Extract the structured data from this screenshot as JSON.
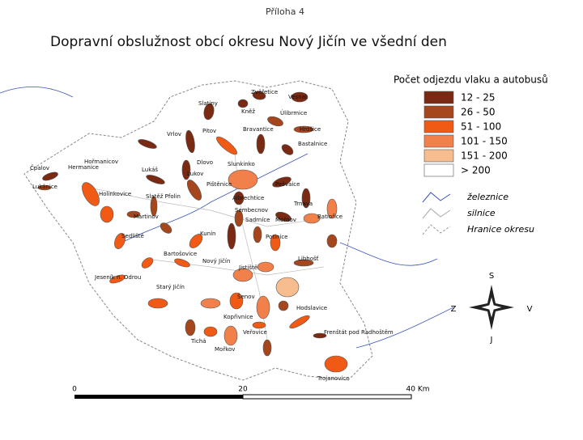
{
  "header": "Příloha 4",
  "title": "Dopravní obslužnost obcí okresu Nový Jičín ve všední den",
  "legend": {
    "title": "Počet odjezdu vlaku a autobusů",
    "classes": [
      {
        "label": "12 - 25",
        "color": "#7a2a12"
      },
      {
        "label": "26 - 50",
        "color": "#a5461c"
      },
      {
        "label": "51 - 100",
        "color": "#f05a14"
      },
      {
        "label": "101 - 150",
        "color": "#f2804a"
      },
      {
        "label": "151 - 200",
        "color": "#f7bd8e"
      },
      {
        "label": "> 200",
        "color": "#ffffff"
      }
    ],
    "lines": [
      "železnice",
      "silnice",
      "Hranice okresu"
    ]
  },
  "compass": {
    "north": "S",
    "west": "Z",
    "east": "V",
    "south": "J"
  },
  "scale_bar": {
    "labels": [
      "0",
      "20",
      "40 Km"
    ]
  },
  "places": [
    "Zvěřetice",
    "Vesnal",
    "Slatiny",
    "Kněž",
    "Úlibrmice",
    "Pitov",
    "Bravantice",
    "Vrlov",
    "Hrdšice",
    "Bastalnice",
    "Hořmanicov",
    "Hermanice",
    "Čpalov",
    "Lukáš",
    "Slunkinko",
    "Dlovo",
    "Lukov",
    "Pištěnice",
    "Pešvaice",
    "Lukánice",
    "Holinkovice",
    "Slatěž Pfolin",
    "Albrechtice",
    "Sembecnov",
    "Trnava",
    "Sadrníce",
    "Mořnov",
    "Batiořice",
    "Sedliště",
    "Martinov",
    "Kunín",
    "Bartošovice",
    "Nový Jičín",
    "Jistiště",
    "Potlnice",
    "Libhošť",
    "Jeseník n. Odrou",
    "Starý Jičín",
    "Šenov",
    "Hodslavice",
    "Veřovice",
    "Mořkov",
    "Frenštát pod Radhoštěm",
    "Trojanovice",
    "Kopřivnice",
    "Tichá"
  ]
}
